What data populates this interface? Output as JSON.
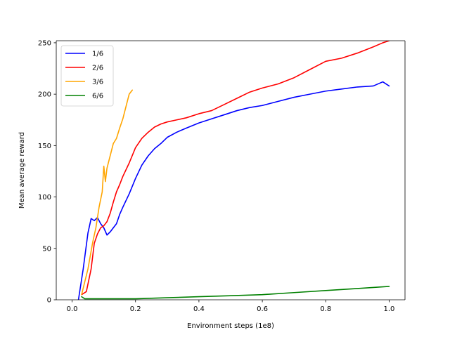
{
  "chart_data": {
    "type": "line",
    "title": "",
    "xlabel": "Environment steps (1e8)",
    "ylabel": "Mean average reward",
    "xlim": [
      -0.05,
      1.05
    ],
    "ylim": [
      0,
      252
    ],
    "xticks": [
      0.0,
      0.2,
      0.4,
      0.6,
      0.8,
      1.0
    ],
    "xtick_labels": [
      "0.0",
      "0.2",
      "0.4",
      "0.6",
      "0.8",
      "1.0"
    ],
    "yticks": [
      0,
      50,
      100,
      150,
      200,
      250
    ],
    "ytick_labels": [
      "0",
      "50",
      "100",
      "150",
      "200",
      "250"
    ],
    "grid": false,
    "legend_position": "top-left",
    "series": [
      {
        "name": "1/6",
        "color": "#0000ff",
        "x": [
          0.02,
          0.035,
          0.05,
          0.06,
          0.07,
          0.08,
          0.09,
          0.1,
          0.11,
          0.12,
          0.13,
          0.14,
          0.15,
          0.16,
          0.18,
          0.2,
          0.22,
          0.24,
          0.26,
          0.28,
          0.3,
          0.33,
          0.36,
          0.4,
          0.44,
          0.48,
          0.52,
          0.56,
          0.6,
          0.65,
          0.7,
          0.75,
          0.8,
          0.85,
          0.9,
          0.95,
          0.98,
          1.0
        ],
        "y": [
          0,
          30,
          65,
          79,
          77,
          80,
          74,
          70,
          63,
          66,
          70,
          74,
          83,
          90,
          103,
          118,
          131,
          140,
          147,
          152,
          158,
          163,
          167,
          172,
          176,
          180,
          184,
          187,
          189,
          193,
          197,
          200,
          203,
          205,
          207,
          208,
          212,
          208
        ]
      },
      {
        "name": "2/6",
        "color": "#ff0000",
        "x": [
          0.03,
          0.045,
          0.06,
          0.07,
          0.08,
          0.09,
          0.1,
          0.11,
          0.12,
          0.13,
          0.14,
          0.15,
          0.16,
          0.18,
          0.2,
          0.22,
          0.24,
          0.26,
          0.28,
          0.3,
          0.33,
          0.36,
          0.4,
          0.44,
          0.48,
          0.52,
          0.56,
          0.6,
          0.65,
          0.7,
          0.75,
          0.8,
          0.85,
          0.9,
          0.95,
          0.98,
          1.0
        ],
        "y": [
          5,
          8,
          30,
          55,
          64,
          70,
          72,
          76,
          84,
          95,
          105,
          112,
          120,
          133,
          148,
          157,
          163,
          168,
          171,
          173,
          175,
          177,
          181,
          184,
          190,
          196,
          202,
          206,
          210,
          216,
          224,
          232,
          235,
          240,
          246,
          250,
          252
        ]
      },
      {
        "name": "3/6",
        "color": "#ffa500",
        "x": [
          0.03,
          0.05,
          0.065,
          0.075,
          0.085,
          0.095,
          0.1,
          0.105,
          0.11,
          0.12,
          0.13,
          0.14,
          0.15,
          0.16,
          0.17,
          0.18,
          0.19
        ],
        "y": [
          5,
          30,
          56,
          70,
          90,
          105,
          130,
          115,
          128,
          140,
          152,
          157,
          167,
          176,
          188,
          200,
          204
        ]
      },
      {
        "name": "6/6",
        "color": "#008000",
        "x": [
          0.03,
          0.04,
          0.06,
          0.1,
          0.2,
          0.3,
          0.4,
          0.5,
          0.6,
          0.7,
          0.8,
          0.9,
          1.0
        ],
        "y": [
          3,
          1,
          1,
          1,
          1,
          2,
          3,
          4,
          5,
          7,
          9,
          11,
          13
        ]
      }
    ]
  }
}
